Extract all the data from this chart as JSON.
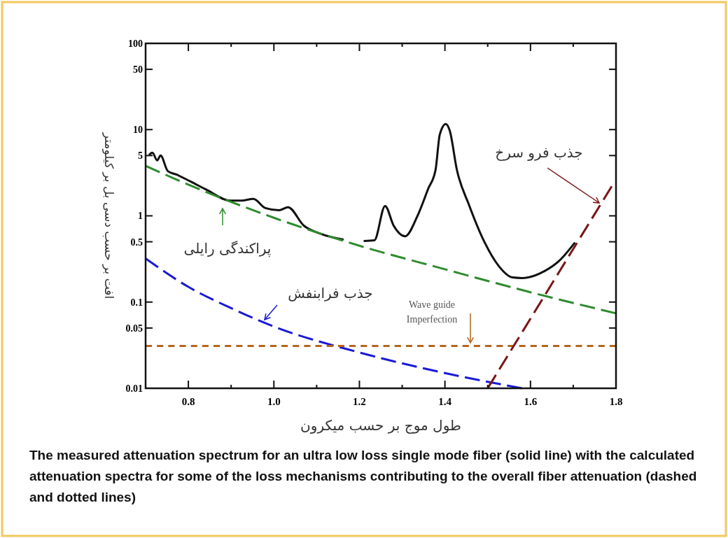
{
  "chart_data": {
    "type": "line",
    "xlabel": "طول موج بر حسب میکرون",
    "ylabel": "افت بر حسب دسی بل بر کیلومتر",
    "log": "y",
    "grid": false,
    "xlim": [
      0.7,
      1.8
    ],
    "xticks": [
      0.8,
      {
        "value": 0.9,
        "label": null
      },
      {
        "value": 1,
        "label": "1.0"
      },
      {
        "value": 1.1,
        "label": null
      },
      1.2,
      {
        "value": 1.3,
        "label": null
      },
      1.4,
      {
        "value": 1.5,
        "label": null
      },
      1.6,
      {
        "value": 1.7,
        "label": null
      },
      1.8
    ],
    "ylim": [
      0.01,
      100
    ],
    "yticks": [
      0.01,
      0.05,
      0.1,
      0.5,
      1,
      5,
      10,
      50,
      100
    ],
    "series": [
      {
        "color": "#111111",
        "line_style": "solid",
        "x": [
          0.708,
          0.716,
          0.727,
          0.735,
          0.752,
          0.773,
          0.805,
          0.843,
          0.898,
          0.924,
          0.952,
          0.98,
          1.012,
          1.033,
          1.07,
          1.109,
          1.163,
          1.18,
          1.21,
          1.235,
          1.26,
          1.28,
          1.307,
          1.335,
          1.361,
          1.378,
          1.388,
          1.402,
          1.411,
          1.428,
          1.456,
          1.493,
          1.525,
          1.558,
          1.58,
          1.634,
          1.667,
          1.704
        ],
        "values": [
          5.1,
          5.4,
          4.4,
          5.0,
          3.3,
          3.0,
          2.5,
          2.0,
          1.5,
          1.5,
          1.57,
          1.23,
          1.16,
          1.26,
          0.77,
          0.62,
          0.53,
          null,
          0.51,
          0.52,
          1.3,
          0.77,
          0.58,
          0.98,
          2.07,
          3.4,
          8.8,
          11.6,
          9.8,
          3.4,
          1.35,
          0.49,
          0.265,
          0.193,
          0.19,
          0.23,
          0.3,
          0.49
        ]
      },
      {
        "name": "پراکندگی رایلی",
        "color": "#2e8b2e",
        "line_style": "dashed",
        "x": [
          0.7,
          0.8,
          0.9,
          1.0,
          1.2,
          1.4,
          1.6,
          1.8
        ],
        "values": [
          3.8,
          2.3,
          1.45,
          0.95,
          0.45,
          0.24,
          0.13,
          0.074
        ]
      },
      {
        "name": "جذب فرابنفش",
        "color": "#1a1ad6",
        "line_style": "dashed",
        "x": [
          0.7,
          0.8,
          0.9,
          1.0,
          1.2,
          1.4,
          1.58
        ],
        "values": [
          0.32,
          0.15,
          0.085,
          0.052,
          0.026,
          0.015,
          0.01
        ]
      },
      {
        "name": "Wave guide Imperfection",
        "color": "#b5651d",
        "line_style": "dotted",
        "x": [
          0.7,
          1.8
        ],
        "values": [
          0.031,
          0.031
        ]
      },
      {
        "name": "جذب فرو سرخ",
        "color": "#7a1515",
        "line_style": "dashed",
        "x": [
          1.5,
          1.79
        ],
        "values": [
          0.01,
          2.2
        ]
      }
    ],
    "annotations": [
      "The measured attenuation spectrum for an ultra low loss single mode fiber (solid line) with the calculated attenuation spectra for some of the loss mechanisms contributing to the overall fiber attenuation (dashed and dotted lines)"
    ]
  }
}
